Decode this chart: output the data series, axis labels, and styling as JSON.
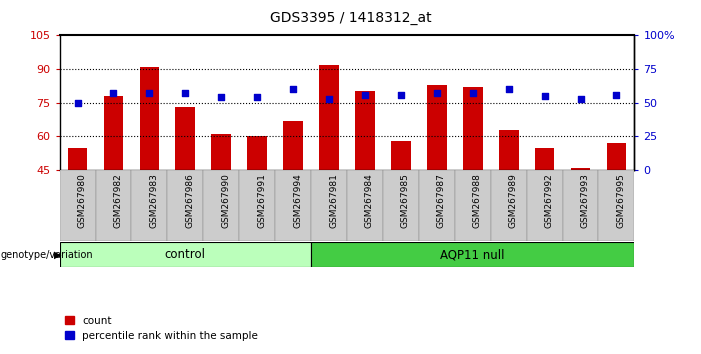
{
  "title": "GDS3395 / 1418312_at",
  "samples": [
    "GSM267980",
    "GSM267982",
    "GSM267983",
    "GSM267986",
    "GSM267990",
    "GSM267991",
    "GSM267994",
    "GSM267981",
    "GSM267984",
    "GSM267985",
    "GSM267987",
    "GSM267988",
    "GSM267989",
    "GSM267992",
    "GSM267993",
    "GSM267995"
  ],
  "counts": [
    55,
    78,
    91,
    73,
    61,
    60,
    67,
    92,
    80,
    58,
    83,
    82,
    63,
    55,
    46,
    57
  ],
  "percentiles": [
    50,
    57,
    57,
    57,
    54,
    54,
    60,
    53,
    56,
    56,
    57,
    57,
    60,
    55,
    53,
    56
  ],
  "n_control": 7,
  "n_aqp": 9,
  "ylim_left": [
    45,
    105
  ],
  "yticks_left": [
    45,
    60,
    75,
    90,
    105
  ],
  "ylim_right": [
    0,
    100
  ],
  "yticks_right": [
    0,
    25,
    50,
    75,
    100
  ],
  "bar_color": "#cc0000",
  "dot_color": "#0000cc",
  "control_color": "#bbffbb",
  "aqp11_color": "#44cc44",
  "xticklabel_bg": "#cccccc",
  "left_axis_color": "#cc0000",
  "right_axis_color": "#0000cc",
  "gridlines_at": [
    60,
    75,
    90
  ]
}
